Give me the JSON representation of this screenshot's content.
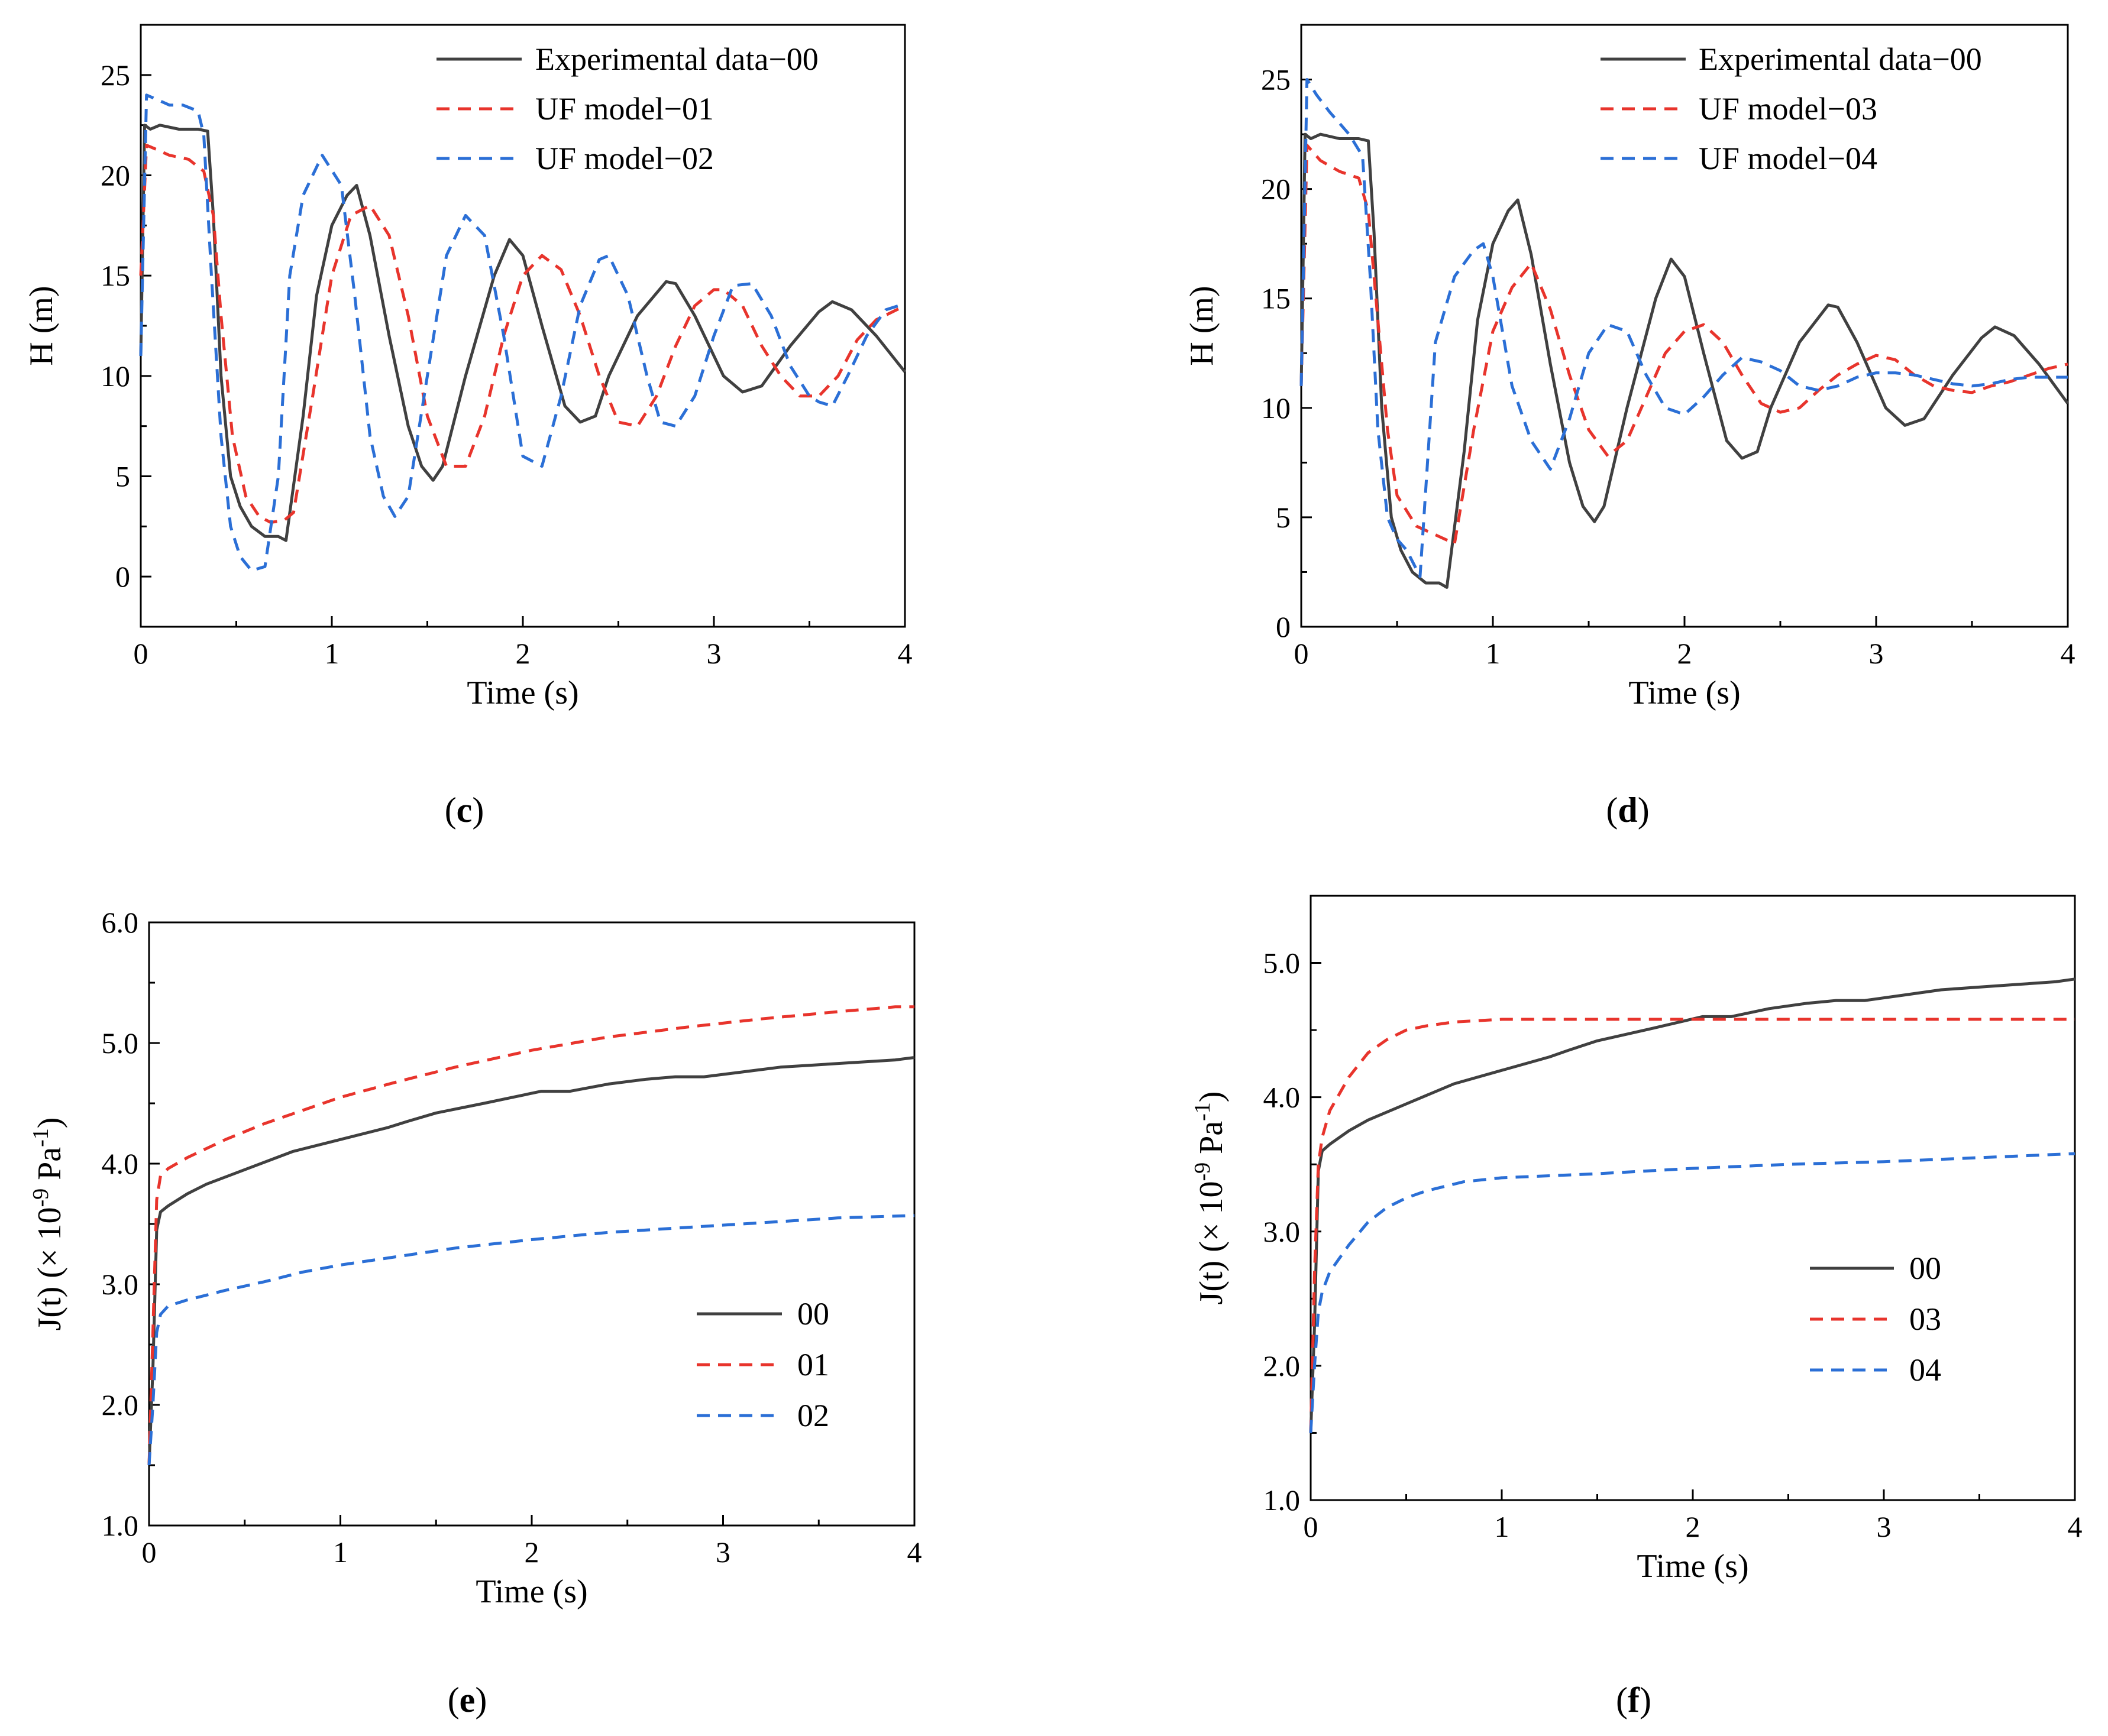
{
  "chart_data": [
    {
      "panel": "c",
      "type": "line",
      "xlabel": "Time (s)",
      "ylabel": "H (m)",
      "xlim": [
        0,
        4
      ],
      "ylim": [
        -2.5,
        27.5
      ],
      "xticks": [
        0,
        1,
        2,
        3,
        4
      ],
      "yticks": [
        0,
        5,
        10,
        15,
        20,
        25
      ],
      "legend": "top-right",
      "series": [
        {
          "name": "Experimental data−00",
          "color": "#404040",
          "style": "solid",
          "x": [
            0,
            0.02,
            0.05,
            0.1,
            0.2,
            0.3,
            0.35,
            0.38,
            0.42,
            0.47,
            0.52,
            0.58,
            0.65,
            0.72,
            0.76,
            0.85,
            0.92,
            1.0,
            1.08,
            1.13,
            1.2,
            1.3,
            1.4,
            1.47,
            1.53,
            1.58,
            1.7,
            1.85,
            1.93,
            2.0,
            2.1,
            2.22,
            2.3,
            2.38,
            2.45,
            2.6,
            2.75,
            2.8,
            2.9,
            3.05,
            3.15,
            3.25,
            3.4,
            3.55,
            3.62,
            3.72,
            3.85,
            4.0
          ],
          "y": [
            11,
            22.5,
            22.3,
            22.5,
            22.3,
            22.3,
            22.2,
            18,
            10,
            5,
            3.5,
            2.5,
            2,
            2,
            1.8,
            8,
            14,
            17.5,
            19,
            19.5,
            17,
            12,
            7.5,
            5.5,
            4.8,
            5.5,
            10,
            15,
            16.8,
            16,
            12.5,
            8.5,
            7.7,
            8,
            10,
            13,
            14.7,
            14.6,
            13,
            10,
            9.2,
            9.5,
            11.5,
            13.2,
            13.7,
            13.3,
            12,
            10.2
          ]
        },
        {
          "name": "UF model−01",
          "color": "#e8342c",
          "style": "dashed",
          "x": [
            0,
            0.03,
            0.08,
            0.15,
            0.25,
            0.33,
            0.38,
            0.42,
            0.48,
            0.55,
            0.62,
            0.68,
            0.75,
            0.8,
            0.9,
            1.0,
            1.1,
            1.2,
            1.3,
            1.4,
            1.5,
            1.6,
            1.7,
            1.8,
            1.9,
            2.0,
            2.1,
            2.2,
            2.3,
            2.4,
            2.5,
            2.6,
            2.7,
            2.8,
            2.9,
            3.0,
            3.05,
            3.15,
            3.25,
            3.35,
            3.45,
            3.55,
            3.65,
            3.75,
            3.85,
            4.0
          ],
          "y": [
            15,
            21.5,
            21.3,
            21,
            20.8,
            20.2,
            18,
            13,
            7,
            4,
            3,
            2.7,
            2.8,
            3.2,
            9,
            15,
            18,
            18.5,
            17,
            13,
            8,
            5.5,
            5.5,
            8,
            12,
            15,
            16,
            15.3,
            13,
            10,
            7.7,
            7.5,
            9,
            11.5,
            13.5,
            14.3,
            14.3,
            13.5,
            11.5,
            10,
            9,
            9,
            10,
            11.8,
            12.8,
            13.5
          ]
        },
        {
          "name": "UF model−02",
          "color": "#2b6fd6",
          "style": "dashed",
          "x": [
            0,
            0.03,
            0.08,
            0.15,
            0.22,
            0.3,
            0.33,
            0.37,
            0.42,
            0.47,
            0.52,
            0.58,
            0.65,
            0.72,
            0.78,
            0.85,
            0.95,
            1.05,
            1.12,
            1.2,
            1.27,
            1.33,
            1.4,
            1.5,
            1.6,
            1.7,
            1.8,
            1.9,
            2.0,
            2.1,
            2.2,
            2.3,
            2.4,
            2.45,
            2.55,
            2.65,
            2.72,
            2.8,
            2.9,
            3.0,
            3.1,
            3.2,
            3.3,
            3.4,
            3.5,
            3.55,
            3.62,
            3.7,
            3.8,
            3.9,
            4.0
          ],
          "y": [
            11,
            24,
            23.8,
            23.5,
            23.5,
            23.2,
            22,
            15,
            7,
            2.5,
            1,
            0.3,
            0.5,
            5,
            15,
            19,
            21,
            19.5,
            14,
            7,
            4,
            3,
            4,
            10,
            16,
            18,
            17,
            12,
            6,
            5.5,
            9,
            13.5,
            15.8,
            16,
            14,
            10,
            7.7,
            7.5,
            9,
            12,
            14.5,
            14.6,
            13,
            10.5,
            9,
            8.7,
            8.5,
            10,
            12,
            13.3,
            13.6
          ]
        }
      ]
    },
    {
      "panel": "d",
      "type": "line",
      "xlabel": "Time (s)",
      "ylabel": "H (m)",
      "xlim": [
        0,
        4
      ],
      "ylim": [
        0,
        27.5
      ],
      "xticks": [
        0,
        1,
        2,
        3,
        4
      ],
      "yticks": [
        0,
        5,
        10,
        15,
        20,
        25
      ],
      "legend": "top-right",
      "series": [
        {
          "name": "Experimental data−00",
          "color": "#404040",
          "style": "solid",
          "x": [
            0,
            0.02,
            0.05,
            0.1,
            0.2,
            0.3,
            0.35,
            0.38,
            0.42,
            0.47,
            0.52,
            0.58,
            0.65,
            0.72,
            0.76,
            0.85,
            0.92,
            1.0,
            1.08,
            1.13,
            1.2,
            1.3,
            1.4,
            1.47,
            1.53,
            1.58,
            1.7,
            1.85,
            1.93,
            2.0,
            2.1,
            2.22,
            2.3,
            2.38,
            2.45,
            2.6,
            2.75,
            2.8,
            2.9,
            3.05,
            3.15,
            3.25,
            3.4,
            3.55,
            3.62,
            3.72,
            3.85,
            4.0
          ],
          "y": [
            11,
            22.5,
            22.3,
            22.5,
            22.3,
            22.3,
            22.2,
            18,
            10,
            5,
            3.5,
            2.5,
            2,
            2,
            1.8,
            8,
            14,
            17.5,
            19,
            19.5,
            17,
            12,
            7.5,
            5.5,
            4.8,
            5.5,
            10,
            15,
            16.8,
            16,
            12.5,
            8.5,
            7.7,
            8,
            10,
            13,
            14.7,
            14.6,
            13,
            10,
            9.2,
            9.5,
            11.5,
            13.2,
            13.7,
            13.3,
            12,
            10.2
          ]
        },
        {
          "name": "UF model−03",
          "color": "#e8342c",
          "style": "dashed",
          "x": [
            0,
            0.03,
            0.1,
            0.2,
            0.3,
            0.35,
            0.4,
            0.45,
            0.5,
            0.6,
            0.7,
            0.8,
            0.9,
            1.0,
            1.1,
            1.2,
            1.3,
            1.4,
            1.5,
            1.6,
            1.7,
            1.8,
            1.9,
            2.0,
            2.1,
            2.2,
            2.3,
            2.4,
            2.5,
            2.6,
            2.7,
            2.8,
            2.9,
            3.0,
            3.1,
            3.2,
            3.3,
            3.4,
            3.5,
            3.6,
            3.7,
            3.8,
            3.9,
            4.0
          ],
          "y": [
            11,
            22,
            21.3,
            20.8,
            20.5,
            19,
            14,
            9,
            6,
            4.6,
            4.2,
            3.8,
            9,
            13.5,
            15.5,
            16.6,
            14.5,
            11.5,
            9,
            7.8,
            8.5,
            10.5,
            12.5,
            13.5,
            13.8,
            13,
            11.5,
            10.2,
            9.8,
            10,
            10.8,
            11.5,
            12,
            12.4,
            12.2,
            11.5,
            11,
            10.8,
            10.7,
            11,
            11.2,
            11.5,
            11.8,
            12
          ]
        },
        {
          "name": "UF model−04",
          "color": "#2b6fd6",
          "style": "dashed",
          "x": [
            0,
            0.03,
            0.08,
            0.15,
            0.25,
            0.32,
            0.36,
            0.4,
            0.45,
            0.5,
            0.55,
            0.62,
            0.7,
            0.8,
            0.9,
            0.95,
            1.0,
            1.1,
            1.2,
            1.3,
            1.4,
            1.5,
            1.6,
            1.7,
            1.8,
            1.9,
            2.0,
            2.1,
            2.2,
            2.3,
            2.4,
            2.5,
            2.6,
            2.7,
            2.8,
            2.9,
            3.0,
            3.1,
            3.2,
            3.3,
            3.4,
            3.5,
            3.6,
            3.7,
            3.8,
            3.9,
            4.0
          ],
          "y": [
            11,
            25,
            24.3,
            23.5,
            22.5,
            21.5,
            16,
            9,
            5,
            4,
            3.5,
            2.3,
            13,
            16,
            17.2,
            17.5,
            16,
            11,
            8.5,
            7.2,
            9.5,
            12.5,
            13.8,
            13.5,
            11.5,
            10,
            9.7,
            10.5,
            11.5,
            12.3,
            12.1,
            11.7,
            11,
            10.8,
            11,
            11.4,
            11.6,
            11.6,
            11.5,
            11.3,
            11.1,
            11,
            11.1,
            11.3,
            11.4,
            11.4,
            11.4
          ]
        }
      ]
    },
    {
      "panel": "e",
      "type": "line",
      "xlabel": "Time (s)",
      "ylabel_main": "J(t) (× 10",
      "ylabel_sup1": "-9",
      "ylabel_mid": " Pa",
      "ylabel_sup2": "-1",
      "ylabel_end": ")",
      "xlim": [
        0,
        4
      ],
      "ylim": [
        1.0,
        6.0
      ],
      "xticks": [
        0,
        1,
        2,
        3,
        4
      ],
      "yticks": [
        "1.0",
        "2.0",
        "3.0",
        "4.0",
        "5.0",
        "6.0"
      ],
      "legend": "center-right",
      "series": [
        {
          "name": "00",
          "color": "#404040",
          "style": "solid",
          "x": [
            0,
            0.02,
            0.04,
            0.06,
            0.1,
            0.2,
            0.3,
            0.5,
            0.75,
            1.0,
            1.25,
            1.35,
            1.5,
            1.75,
            1.9,
            2.05,
            2.2,
            2.4,
            2.6,
            2.75,
            2.9,
            3.1,
            3.3,
            3.5,
            3.7,
            3.9,
            4.0
          ],
          "y": [
            1.5,
            2.3,
            3.45,
            3.6,
            3.65,
            3.75,
            3.83,
            3.95,
            4.1,
            4.2,
            4.3,
            4.35,
            4.42,
            4.5,
            4.55,
            4.6,
            4.6,
            4.66,
            4.7,
            4.72,
            4.72,
            4.76,
            4.8,
            4.82,
            4.84,
            4.86,
            4.88
          ]
        },
        {
          "name": "01",
          "color": "#e8342c",
          "style": "dashed",
          "x": [
            0,
            0.02,
            0.04,
            0.06,
            0.1,
            0.2,
            0.4,
            0.6,
            0.8,
            1.0,
            1.3,
            1.6,
            2.0,
            2.4,
            2.8,
            3.2,
            3.6,
            3.9,
            4.0
          ],
          "y": [
            1.5,
            2.6,
            3.7,
            3.9,
            3.96,
            4.05,
            4.2,
            4.33,
            4.44,
            4.55,
            4.68,
            4.8,
            4.94,
            5.05,
            5.13,
            5.2,
            5.26,
            5.3,
            5.3
          ]
        },
        {
          "name": "02",
          "color": "#2b6fd6",
          "style": "dashed",
          "x": [
            0,
            0.02,
            0.04,
            0.06,
            0.1,
            0.2,
            0.4,
            0.6,
            0.8,
            1.0,
            1.3,
            1.6,
            2.0,
            2.4,
            2.8,
            3.2,
            3.6,
            4.0
          ],
          "y": [
            1.5,
            2.0,
            2.6,
            2.75,
            2.82,
            2.87,
            2.95,
            3.02,
            3.1,
            3.16,
            3.23,
            3.3,
            3.37,
            3.43,
            3.47,
            3.51,
            3.55,
            3.57
          ]
        }
      ]
    },
    {
      "panel": "f",
      "type": "line",
      "xlabel": "Time (s)",
      "ylabel_main": "J(t) (× 10",
      "ylabel_sup1": "-9",
      "ylabel_mid": " Pa",
      "ylabel_sup2": "-1",
      "ylabel_end": ")",
      "xlim": [
        0,
        4
      ],
      "ylim": [
        1.0,
        5.5
      ],
      "xticks": [
        0,
        1,
        2,
        3,
        4
      ],
      "yticks": [
        "1.0",
        "2.0",
        "3.0",
        "4.0",
        "5.0"
      ],
      "legend": "center-right",
      "series": [
        {
          "name": "00",
          "color": "#404040",
          "style": "solid",
          "x": [
            0,
            0.02,
            0.04,
            0.06,
            0.1,
            0.2,
            0.3,
            0.5,
            0.75,
            1.0,
            1.25,
            1.35,
            1.5,
            1.75,
            1.9,
            2.05,
            2.2,
            2.4,
            2.6,
            2.75,
            2.9,
            3.1,
            3.3,
            3.5,
            3.7,
            3.9,
            4.0
          ],
          "y": [
            1.5,
            2.3,
            3.45,
            3.6,
            3.65,
            3.75,
            3.83,
            3.95,
            4.1,
            4.2,
            4.3,
            4.35,
            4.42,
            4.5,
            4.55,
            4.6,
            4.6,
            4.66,
            4.7,
            4.72,
            4.72,
            4.76,
            4.8,
            4.82,
            4.84,
            4.86,
            4.88
          ]
        },
        {
          "name": "03",
          "color": "#e8342c",
          "style": "dashed",
          "x": [
            0,
            0.02,
            0.04,
            0.06,
            0.1,
            0.2,
            0.3,
            0.4,
            0.5,
            0.6,
            0.75,
            1.0,
            1.5,
            2.0,
            2.5,
            3.0,
            3.5,
            4.0
          ],
          "y": [
            1.5,
            2.7,
            3.5,
            3.7,
            3.9,
            4.15,
            4.33,
            4.43,
            4.5,
            4.53,
            4.56,
            4.58,
            4.58,
            4.58,
            4.58,
            4.58,
            4.58,
            4.58
          ]
        },
        {
          "name": "04",
          "color": "#2b6fd6",
          "style": "dashed",
          "x": [
            0,
            0.02,
            0.04,
            0.06,
            0.1,
            0.2,
            0.3,
            0.4,
            0.5,
            0.6,
            0.8,
            1.0,
            1.5,
            2.0,
            2.5,
            3.0,
            3.5,
            4.0
          ],
          "y": [
            1.5,
            2.0,
            2.4,
            2.55,
            2.7,
            2.9,
            3.07,
            3.18,
            3.25,
            3.3,
            3.37,
            3.4,
            3.43,
            3.47,
            3.5,
            3.52,
            3.55,
            3.58
          ]
        }
      ]
    }
  ]
}
